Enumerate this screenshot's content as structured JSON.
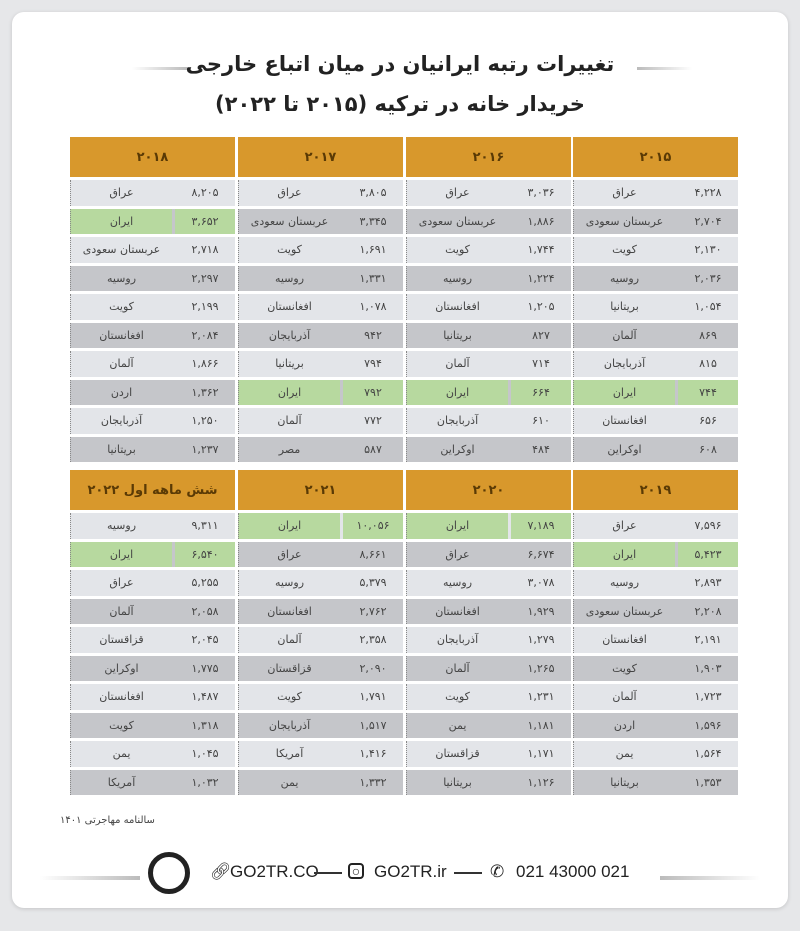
{
  "title": {
    "line1": "تغییرات رتبه ایرانیان در میان اتباع خارجی",
    "line2": "خریدار خانه در ترکیه (۲۰۱۵ تا ۲۰۲۲)"
  },
  "colors": {
    "header": "#d8982c",
    "highlight": "#b7d99f",
    "row_light": "#e3e5e9",
    "row_dark": "#c5c6ca"
  },
  "highlight_country": "ایران",
  "tables": [
    {
      "year": "۲۰۱۵",
      "rows": [
        [
          "عراق",
          "۴,۲۲۸"
        ],
        [
          "عربستان سعودی",
          "۲,۷۰۴"
        ],
        [
          "کویت",
          "۲,۱۳۰"
        ],
        [
          "روسیه",
          "۲,۰۳۶"
        ],
        [
          "بریتانیا",
          "۱,۰۵۴"
        ],
        [
          "آلمان",
          "۸۶۹"
        ],
        [
          "آذربایجان",
          "۸۱۵"
        ],
        [
          "ایران",
          "۷۴۴"
        ],
        [
          "افغانستان",
          "۶۵۶"
        ],
        [
          "اوکراین",
          "۶۰۸"
        ]
      ]
    },
    {
      "year": "۲۰۱۶",
      "rows": [
        [
          "عراق",
          "۳,۰۳۶"
        ],
        [
          "عربستان سعودی",
          "۱,۸۸۶"
        ],
        [
          "کویت",
          "۱,۷۴۴"
        ],
        [
          "روسیه",
          "۱,۲۲۴"
        ],
        [
          "افغانستان",
          "۱,۲۰۵"
        ],
        [
          "بریتانیا",
          "۸۲۷"
        ],
        [
          "آلمان",
          "۷۱۴"
        ],
        [
          "ایران",
          "۶۶۴"
        ],
        [
          "آذربایجان",
          "۶۱۰"
        ],
        [
          "اوکراین",
          "۴۸۴"
        ]
      ]
    },
    {
      "year": "۲۰۱۷",
      "rows": [
        [
          "عراق",
          "۳,۸۰۵"
        ],
        [
          "عربستان سعودی",
          "۳,۳۴۵"
        ],
        [
          "کویت",
          "۱,۶۹۱"
        ],
        [
          "روسیه",
          "۱,۳۳۱"
        ],
        [
          "افغانستان",
          "۱,۰۷۸"
        ],
        [
          "آذربایجان",
          "۹۴۲"
        ],
        [
          "بریتانیا",
          "۷۹۴"
        ],
        [
          "ایران",
          "۷۹۲"
        ],
        [
          "آلمان",
          "۷۷۲"
        ],
        [
          "مصر",
          "۵۸۷"
        ]
      ]
    },
    {
      "year": "۲۰۱۸",
      "rows": [
        [
          "عراق",
          "۸,۲۰۵"
        ],
        [
          "ایران",
          "۳,۶۵۲"
        ],
        [
          "عربستان سعودی",
          "۲,۷۱۸"
        ],
        [
          "روسیه",
          "۲,۲۹۷"
        ],
        [
          "کویت",
          "۲,۱۹۹"
        ],
        [
          "افغانستان",
          "۲,۰۸۴"
        ],
        [
          "آلمان",
          "۱,۸۶۶"
        ],
        [
          "اردن",
          "۱,۳۶۲"
        ],
        [
          "آذربایجان",
          "۱,۲۵۰"
        ],
        [
          "بریتانیا",
          "۱,۲۳۷"
        ]
      ]
    },
    {
      "year": "۲۰۱۹",
      "rows": [
        [
          "عراق",
          "۷,۵۹۶"
        ],
        [
          "ایران",
          "۵,۴۲۳"
        ],
        [
          "روسیه",
          "۲,۸۹۳"
        ],
        [
          "عربستان سعودی",
          "۲,۲۰۸"
        ],
        [
          "افغانستان",
          "۲,۱۹۱"
        ],
        [
          "کویت",
          "۱,۹۰۳"
        ],
        [
          "آلمان",
          "۱,۷۲۳"
        ],
        [
          "اردن",
          "۱,۵۹۶"
        ],
        [
          "یمن",
          "۱,۵۶۴"
        ],
        [
          "بریتانیا",
          "۱,۳۵۳"
        ]
      ]
    },
    {
      "year": "۲۰۲۰",
      "rows": [
        [
          "ایران",
          "۷,۱۸۹"
        ],
        [
          "عراق",
          "۶,۶۷۴"
        ],
        [
          "روسیه",
          "۳,۰۷۸"
        ],
        [
          "افغانستان",
          "۱,۹۲۹"
        ],
        [
          "آذربایجان",
          "۱,۲۷۹"
        ],
        [
          "آلمان",
          "۱,۲۶۵"
        ],
        [
          "کویت",
          "۱,۲۳۱"
        ],
        [
          "یمن",
          "۱,۱۸۱"
        ],
        [
          "قزاقستان",
          "۱,۱۷۱"
        ],
        [
          "بریتانیا",
          "۱,۱۲۶"
        ]
      ]
    },
    {
      "year": "۲۰۲۱",
      "rows": [
        [
          "ایران",
          "۱۰,۰۵۶"
        ],
        [
          "عراق",
          "۸,۶۶۱"
        ],
        [
          "روسیه",
          "۵,۳۷۹"
        ],
        [
          "افغانستان",
          "۲,۷۶۲"
        ],
        [
          "آلمان",
          "۲,۳۵۸"
        ],
        [
          "قزاقستان",
          "۲,۰۹۰"
        ],
        [
          "کویت",
          "۱,۷۹۱"
        ],
        [
          "آذربایجان",
          "۱,۵۱۷"
        ],
        [
          "آمریکا",
          "۱,۴۱۶"
        ],
        [
          "یمن",
          "۱,۳۳۲"
        ]
      ]
    },
    {
      "year": "شش ماهه اول ۲۰۲۲",
      "rows": [
        [
          "روسیه",
          "۹,۳۱۱"
        ],
        [
          "ایران",
          "۶,۵۴۰"
        ],
        [
          "عراق",
          "۵,۲۵۵"
        ],
        [
          "آلمان",
          "۲,۰۵۸"
        ],
        [
          "قزاقستان",
          "۲,۰۴۵"
        ],
        [
          "اوکراین",
          "۱,۷۷۵"
        ],
        [
          "افغانستان",
          "۱,۴۸۷"
        ],
        [
          "کویت",
          "۱,۳۱۸"
        ],
        [
          "یمن",
          "۱,۰۴۵"
        ],
        [
          "آمریکا",
          "۱,۰۳۲"
        ]
      ]
    }
  ],
  "source": "سالنامه مهاجرتی ۱۴۰۱",
  "footer": {
    "website": "GO2TR.CO",
    "instagram": "GO2TR.ir",
    "phone": "021 43000 021",
    "icons": [
      "logo-icon",
      "link-icon",
      "instagram-icon",
      "phone-icon"
    ]
  }
}
